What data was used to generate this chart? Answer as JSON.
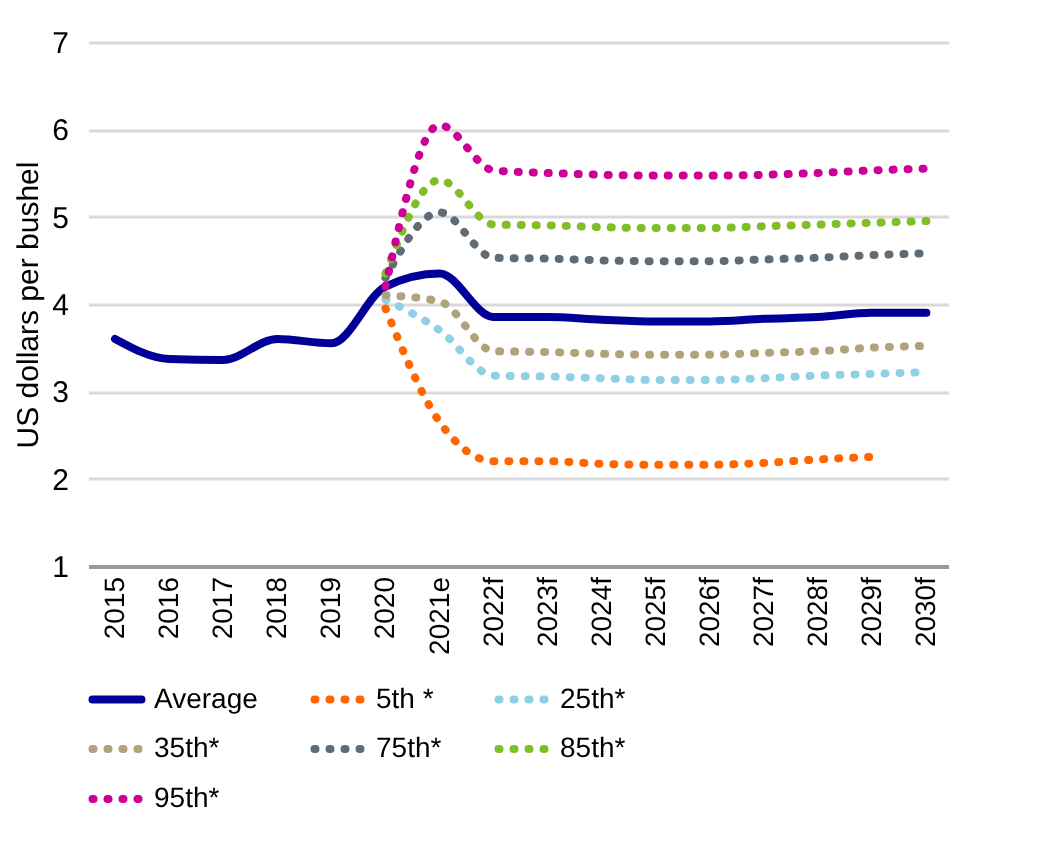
{
  "chart_data": {
    "type": "line",
    "ylabel": "US dollars per bushel",
    "x": [
      2015,
      2016,
      2017,
      2018,
      2019,
      2020,
      2021,
      2022,
      2023,
      2024,
      2025,
      2026,
      2027,
      2028,
      2029,
      2030
    ],
    "xlim": [
      2014.5,
      2030.4
    ],
    "xticks": [
      {
        "value": 2015,
        "label": "2015"
      },
      {
        "value": 2016,
        "label": "2016"
      },
      {
        "value": 2017,
        "label": "2017"
      },
      {
        "value": 2018,
        "label": "2018"
      },
      {
        "value": 2019,
        "label": "2019"
      },
      {
        "value": 2020,
        "label": "2020"
      },
      {
        "value": 2021,
        "label": "2021e"
      },
      {
        "value": 2022,
        "label": "2022f"
      },
      {
        "value": 2023,
        "label": "2023f"
      },
      {
        "value": 2024,
        "label": "2024f"
      },
      {
        "value": 2025,
        "label": "2025f"
      },
      {
        "value": 2026,
        "label": "2026f"
      },
      {
        "value": 2027,
        "label": "2027f"
      },
      {
        "value": 2028,
        "label": "2028f"
      },
      {
        "value": 2029,
        "label": "2029f"
      },
      {
        "value": 2030,
        "label": "2030f"
      }
    ],
    "ylim": [
      1,
      7
    ],
    "yticks": [
      1,
      2,
      3,
      4,
      5,
      6,
      7
    ],
    "grid": "y",
    "legend": "bottom",
    "series": [
      {
        "name": "Average",
        "color": "#000099",
        "line_style": "solid",
        "values": [
          3.6,
          3.37,
          3.36,
          3.6,
          3.55,
          4.2,
          4.35,
          3.85,
          3.85,
          3.82,
          3.8,
          3.8,
          3.83,
          3.85,
          3.9,
          3.9
        ]
      },
      {
        "name": "5th *",
        "color": "#ff6600",
        "line_style": "dotted",
        "x": [
          2020,
          2021,
          2022,
          2023,
          2024,
          2025,
          2026,
          2027,
          2028,
          2029
        ],
        "values": [
          3.95,
          2.65,
          2.2,
          2.2,
          2.17,
          2.16,
          2.16,
          2.18,
          2.22,
          2.25
        ]
      },
      {
        "name": "25th*",
        "color": "#8fd0e6",
        "line_style": "dotted",
        "x": [
          2020,
          2021,
          2022,
          2023,
          2024,
          2025,
          2026,
          2027,
          2028,
          2029,
          2030
        ],
        "values": [
          4.05,
          3.7,
          3.18,
          3.17,
          3.15,
          3.13,
          3.13,
          3.15,
          3.18,
          3.2,
          3.22
        ]
      },
      {
        "name": "35th*",
        "color": "#b0a27a",
        "line_style": "dotted",
        "x": [
          2020,
          2021,
          2022,
          2023,
          2024,
          2025,
          2026,
          2027,
          2028,
          2029,
          2030
        ],
        "values": [
          4.1,
          4.03,
          3.46,
          3.45,
          3.43,
          3.42,
          3.42,
          3.44,
          3.46,
          3.5,
          3.52
        ]
      },
      {
        "name": "75th*",
        "color": "#5f6b75",
        "line_style": "dotted",
        "x": [
          2020,
          2021,
          2022,
          2023,
          2024,
          2025,
          2026,
          2027,
          2028,
          2029,
          2030
        ],
        "values": [
          4.3,
          5.05,
          4.53,
          4.52,
          4.5,
          4.49,
          4.49,
          4.51,
          4.53,
          4.56,
          4.58
        ]
      },
      {
        "name": "85th*",
        "color": "#7fbe27",
        "line_style": "dotted",
        "x": [
          2020,
          2021,
          2022,
          2023,
          2024,
          2025,
          2026,
          2027,
          2028,
          2029,
          2030
        ],
        "values": [
          4.35,
          5.42,
          4.91,
          4.9,
          4.88,
          4.87,
          4.87,
          4.89,
          4.91,
          4.93,
          4.95
        ]
      },
      {
        "name": "95th*",
        "color": "#cc0099",
        "line_style": "dotted",
        "x": [
          2020,
          2021,
          2022,
          2023,
          2024,
          2025,
          2026,
          2027,
          2028,
          2029,
          2030
        ],
        "values": [
          4.2,
          6.05,
          5.53,
          5.5,
          5.48,
          5.47,
          5.47,
          5.48,
          5.5,
          5.53,
          5.55
        ]
      }
    ]
  }
}
